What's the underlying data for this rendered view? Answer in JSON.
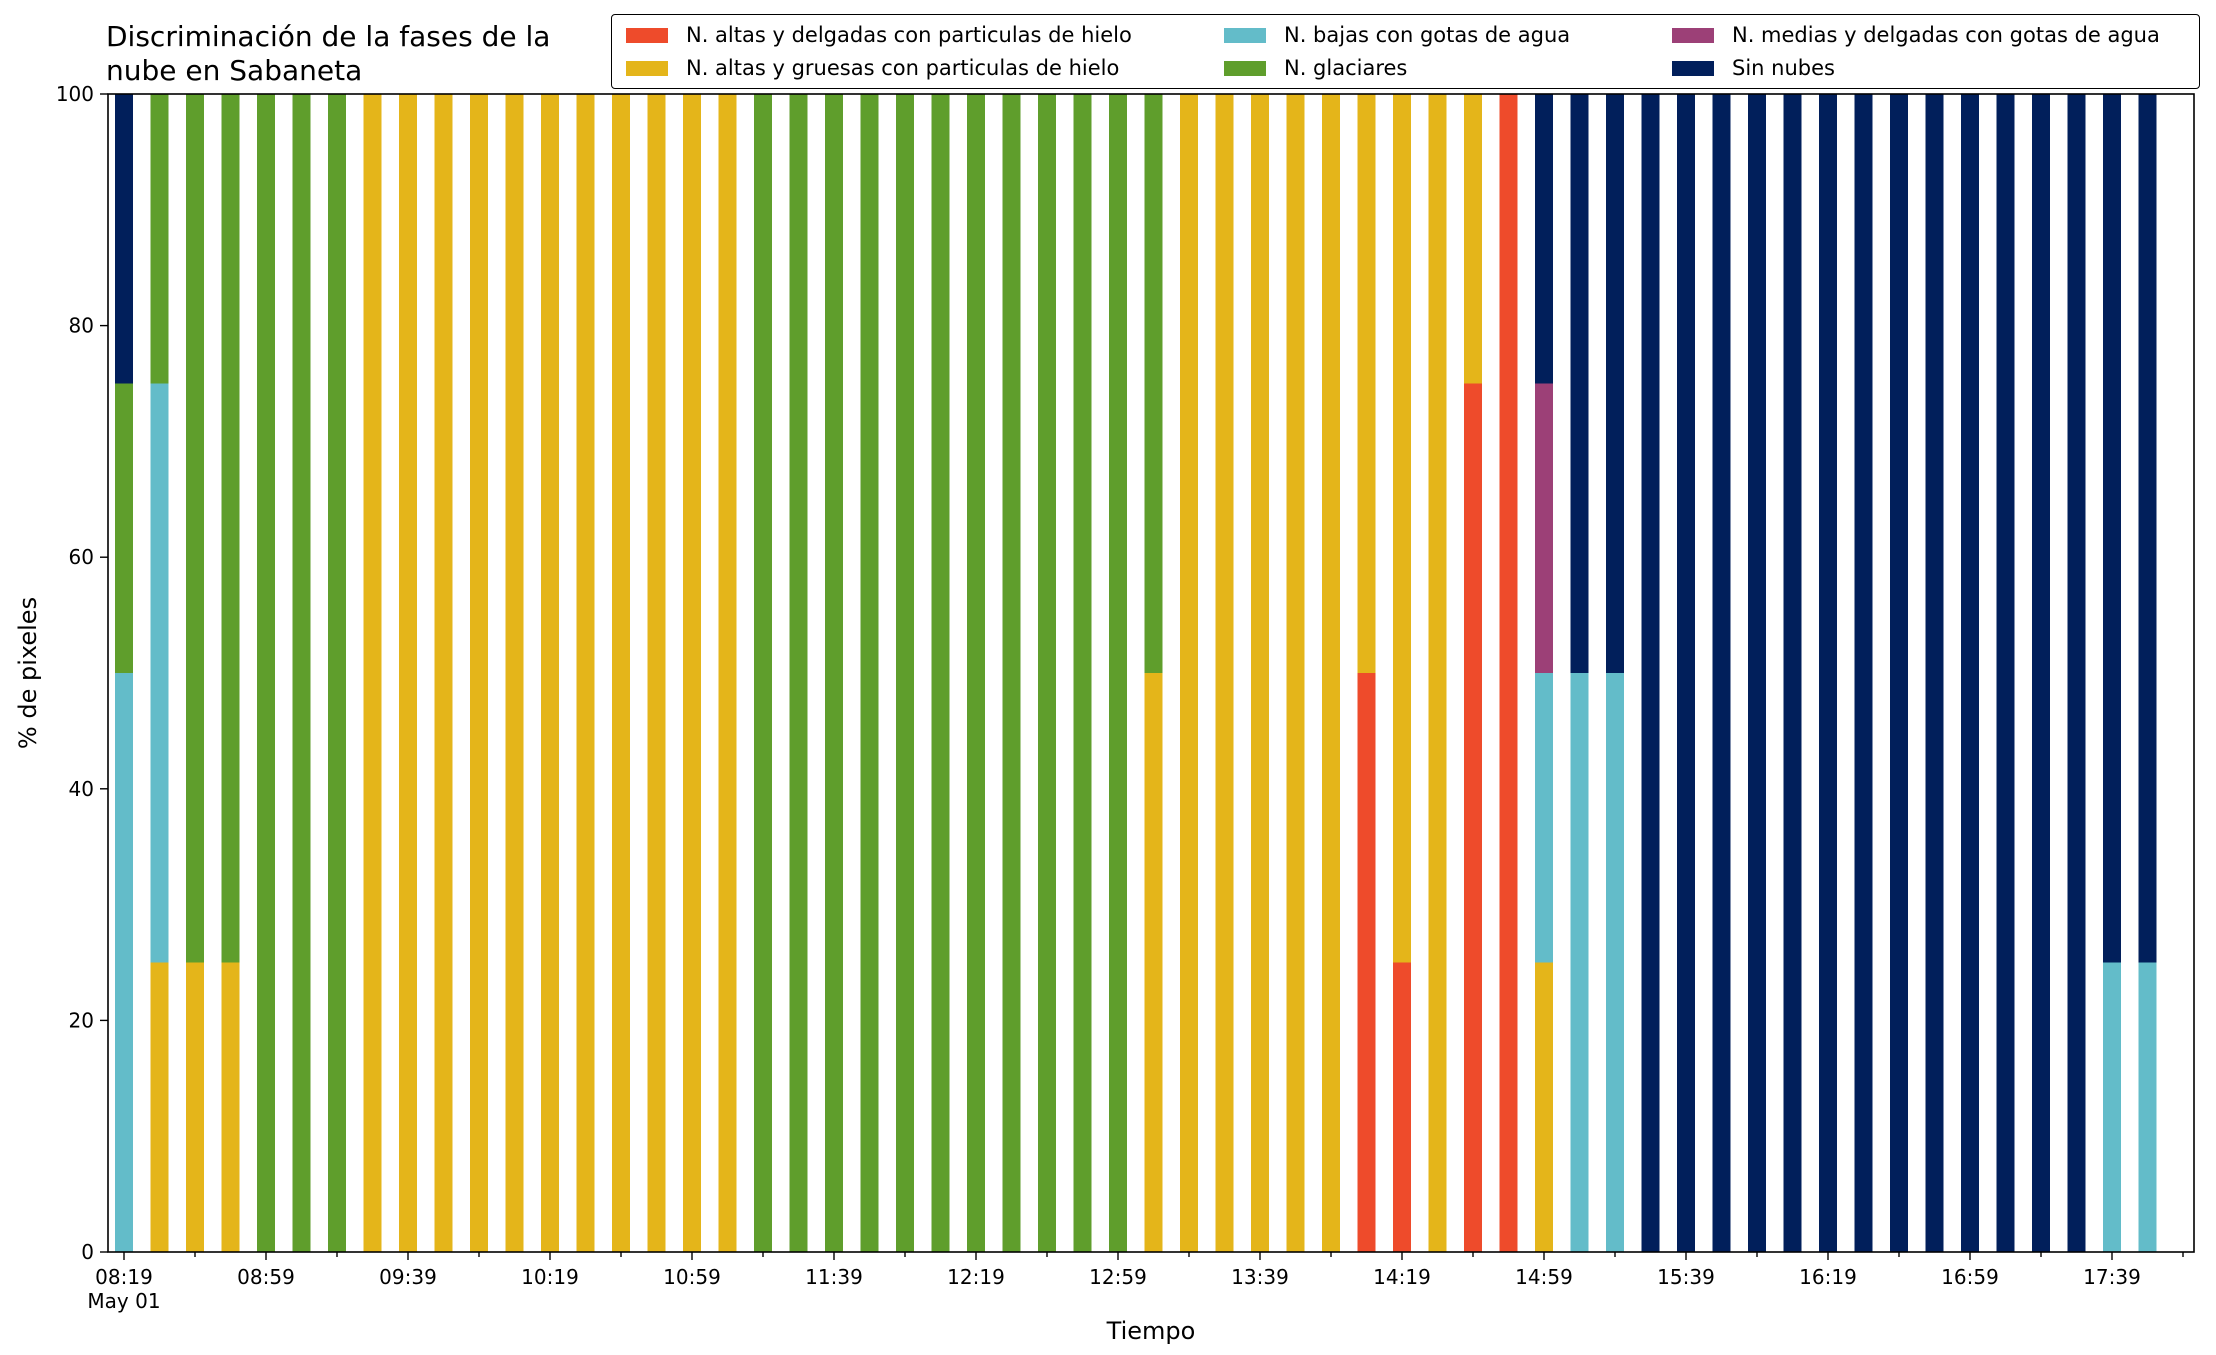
{
  "chart_data": {
    "type": "bar",
    "stacked": true,
    "title": "Discriminación de la fases de la\nnube en Sabaneta",
    "xlabel": "Tiempo",
    "ylabel": "% de pixeles",
    "ylim": [
      0,
      100
    ],
    "yticks": [
      0,
      20,
      40,
      60,
      80,
      100
    ],
    "xtick_labels": [
      "08:19",
      "08:59",
      "09:39",
      "10:19",
      "10:59",
      "11:39",
      "12:19",
      "12:59",
      "13:39",
      "14:19",
      "14:59",
      "15:39",
      "16:19",
      "16:59",
      "17:39"
    ],
    "xtick_sublabel": "May 01",
    "grid": false,
    "legend_position": "top-right",
    "categories": [
      "08:19",
      "08:29",
      "08:39",
      "08:49",
      "08:59",
      "09:09",
      "09:19",
      "09:29",
      "09:39",
      "09:49",
      "09:59",
      "10:09",
      "10:19",
      "10:29",
      "10:39",
      "10:49",
      "10:59",
      "11:09",
      "11:19",
      "11:29",
      "11:39",
      "11:49",
      "11:59",
      "12:09",
      "12:19",
      "12:29",
      "12:39",
      "12:49",
      "12:59",
      "13:09",
      "13:19",
      "13:29",
      "13:39",
      "13:49",
      "13:59",
      "14:09",
      "14:19",
      "14:29",
      "14:39",
      "14:49",
      "14:59",
      "15:09",
      "15:19",
      "15:29",
      "15:39",
      "15:49",
      "15:59",
      "16:09",
      "16:19",
      "16:29",
      "16:39",
      "16:49",
      "16:59",
      "17:09",
      "17:19",
      "17:29",
      "17:39",
      "17:49"
    ],
    "series": [
      {
        "name": "N. altas y delgadas con particulas de hielo",
        "color": "#ee4b2b",
        "values": [
          0,
          0,
          0,
          0,
          0,
          0,
          0,
          0,
          0,
          0,
          0,
          0,
          0,
          0,
          0,
          0,
          0,
          0,
          0,
          0,
          0,
          0,
          0,
          0,
          0,
          0,
          0,
          0,
          0,
          0,
          0,
          0,
          0,
          0,
          0,
          50,
          25,
          0,
          75,
          100,
          0,
          0,
          0,
          0,
          0,
          0,
          0,
          0,
          0,
          0,
          0,
          0,
          0,
          0,
          0,
          0,
          0,
          0
        ]
      },
      {
        "name": "N. altas y gruesas con particulas de hielo",
        "color": "#e4b51a",
        "values": [
          0,
          25,
          25,
          25,
          0,
          0,
          0,
          100,
          100,
          100,
          100,
          100,
          100,
          100,
          100,
          100,
          100,
          100,
          0,
          0,
          0,
          0,
          0,
          0,
          0,
          0,
          0,
          0,
          0,
          50,
          100,
          100,
          100,
          100,
          100,
          50,
          75,
          100,
          25,
          0,
          25,
          0,
          0,
          0,
          0,
          0,
          0,
          0,
          0,
          0,
          0,
          0,
          0,
          0,
          0,
          0,
          0,
          0
        ]
      },
      {
        "name": "N. bajas con gotas de agua",
        "color": "#63bcc9",
        "values": [
          50,
          50,
          0,
          0,
          0,
          0,
          0,
          0,
          0,
          0,
          0,
          0,
          0,
          0,
          0,
          0,
          0,
          0,
          0,
          0,
          0,
          0,
          0,
          0,
          0,
          0,
          0,
          0,
          0,
          0,
          0,
          0,
          0,
          0,
          0,
          0,
          0,
          0,
          0,
          0,
          25,
          50,
          50,
          0,
          0,
          0,
          0,
          0,
          0,
          0,
          0,
          0,
          0,
          0,
          0,
          0,
          25,
          25
        ]
      },
      {
        "name": "N. glaciares",
        "color": "#5f9e2c",
        "values": [
          25,
          25,
          75,
          75,
          100,
          100,
          100,
          0,
          0,
          0,
          0,
          0,
          0,
          0,
          0,
          0,
          0,
          0,
          100,
          100,
          100,
          100,
          100,
          100,
          100,
          100,
          100,
          100,
          100,
          50,
          0,
          0,
          0,
          0,
          0,
          0,
          0,
          0,
          0,
          0,
          0,
          0,
          0,
          0,
          0,
          0,
          0,
          0,
          0,
          0,
          0,
          0,
          0,
          0,
          0,
          0,
          0,
          0
        ]
      },
      {
        "name": "N. medias y delgadas con gotas de agua",
        "color": "#9c4077",
        "values": [
          0,
          0,
          0,
          0,
          0,
          0,
          0,
          0,
          0,
          0,
          0,
          0,
          0,
          0,
          0,
          0,
          0,
          0,
          0,
          0,
          0,
          0,
          0,
          0,
          0,
          0,
          0,
          0,
          0,
          0,
          0,
          0,
          0,
          0,
          0,
          0,
          0,
          0,
          0,
          0,
          25,
          0,
          0,
          0,
          0,
          0,
          0,
          0,
          0,
          0,
          0,
          0,
          0,
          0,
          0,
          0,
          0,
          0
        ]
      },
      {
        "name": "Sin nubes",
        "color": "#011f5b",
        "values": [
          25,
          0,
          0,
          0,
          0,
          0,
          0,
          0,
          0,
          0,
          0,
          0,
          0,
          0,
          0,
          0,
          0,
          0,
          0,
          0,
          0,
          0,
          0,
          0,
          0,
          0,
          0,
          0,
          0,
          0,
          0,
          0,
          0,
          0,
          0,
          0,
          0,
          0,
          0,
          0,
          25,
          50,
          50,
          100,
          100,
          100,
          100,
          100,
          100,
          100,
          100,
          100,
          100,
          100,
          100,
          100,
          75,
          75
        ]
      }
    ],
    "stack_order": [
      0,
      1,
      2,
      3,
      4,
      5
    ]
  },
  "legend": {
    "items": [
      {
        "label": "N. altas y delgadas con particulas de hielo",
        "color": "#ee4b2b"
      },
      {
        "label": "N. altas y gruesas con particulas de hielo",
        "color": "#e4b51a"
      },
      {
        "label": "N. bajas con gotas de agua",
        "color": "#63bcc9"
      },
      {
        "label": "N. glaciares",
        "color": "#5f9e2c"
      },
      {
        "label": "N. medias y delgadas con gotas de agua",
        "color": "#9c4077"
      },
      {
        "label": "Sin nubes",
        "color": "#011f5b"
      }
    ]
  }
}
